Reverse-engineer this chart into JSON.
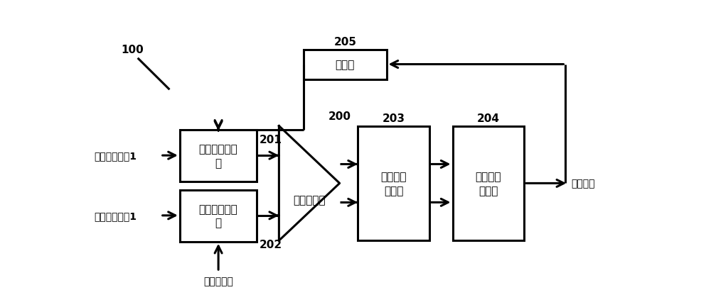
{
  "background_color": "#ffffff",
  "label_100": "100",
  "label_200": "200",
  "label_201": "201",
  "label_202": "202",
  "label_203": "203",
  "label_204": "204",
  "label_205": "205",
  "box1_label": "第一数控延迟\n链",
  "box2_label": "第二数控延迟\n链",
  "box3_label": "第二鉴频\n鉴相器",
  "box4_label": "时间数字\n转换器",
  "box5_label": "积分器",
  "amp_label": "时间放大器",
  "input1_label": "反馈分频信号1",
  "input2_label": "参考时钟信号1",
  "fixed_code_label": "固定控制码",
  "output_label": "误差信号"
}
